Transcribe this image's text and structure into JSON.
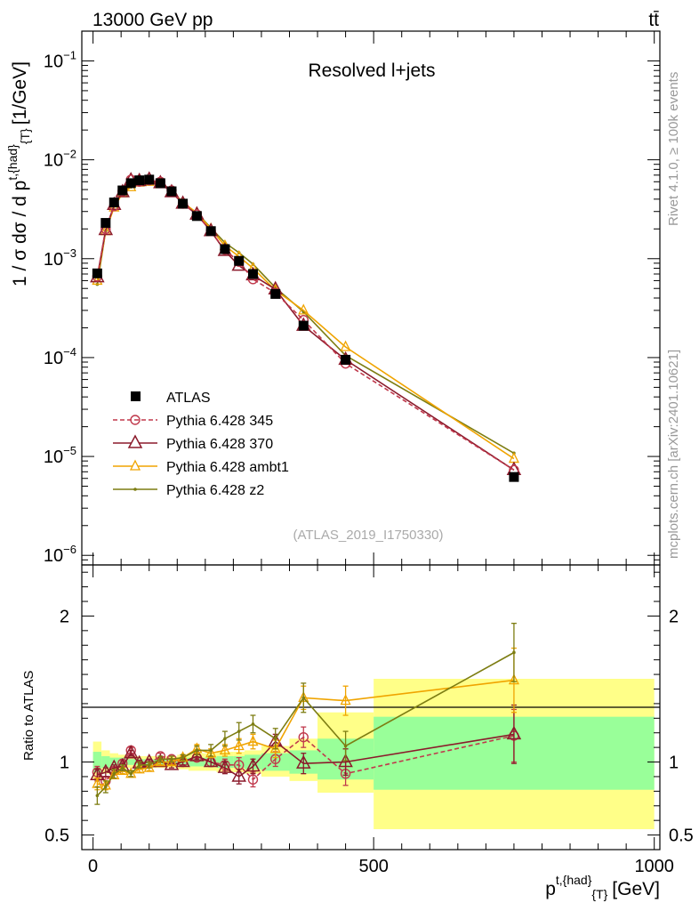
{
  "header": {
    "energy_label": "13000 GeV pp",
    "process_label": "tt̄"
  },
  "side_labels": {
    "rivet": "Rivet 4.1.0, ≥ 100k events",
    "mcplots": "mcplots.cern.ch [arXiv:2401.10621]"
  },
  "colors": {
    "atlas": "#000000",
    "p345": "#c0394c",
    "p370": "#8b1a2b",
    "ambt1": "#f0a400",
    "z2": "#7d7d12",
    "band_inner": "#99ff99",
    "band_outer": "#ffff88"
  },
  "chart_data": [
    {
      "type": "scatter",
      "scale": "log",
      "title": "Resolved l+jets",
      "analysis_id": "(ATLAS_2019_I1750330)",
      "ylabel_main": "1 / σ dσ / d p",
      "ylabel_sup": "t,{had}",
      "ylabel_sub": "{T}",
      "ylabel_unit": "[1/GeV]",
      "xlim": [
        -20,
        1010
      ],
      "ylim": [
        8e-07,
        0.2
      ],
      "ytick_labels": [
        {
          "base": "10",
          "exp": "−1",
          "value": 0.1
        },
        {
          "base": "10",
          "exp": "−2",
          "value": 0.01
        },
        {
          "base": "10",
          "exp": "−3",
          "value": 0.001
        },
        {
          "base": "10",
          "exp": "−4",
          "value": 0.0001
        },
        {
          "base": "10",
          "exp": "−5",
          "value": 1e-05
        },
        {
          "base": "10",
          "exp": "−6",
          "value": 1e-06
        }
      ],
      "x": [
        7.5,
        22.5,
        37.5,
        52.5,
        67.5,
        82.5,
        100,
        120,
        140,
        160,
        185,
        210,
        235,
        260,
        285,
        325,
        375,
        450,
        750
      ],
      "series": [
        {
          "name": "ATLAS",
          "key": "atlas",
          "values": [
            0.00071,
            0.0023,
            0.0037,
            0.0049,
            0.0058,
            0.0062,
            0.0063,
            0.0058,
            0.0048,
            0.0036,
            0.0027,
            0.0019,
            0.00125,
            0.00095,
            0.0007,
            0.00044,
            0.00021,
            9.5e-05,
            6.2e-06
          ]
        },
        {
          "name": "Pythia 6.428 345",
          "key": "p345",
          "values": [
            0.00066,
            0.002,
            0.0034,
            0.0048,
            0.0063,
            0.006,
            0.0062,
            0.006,
            0.0049,
            0.0036,
            0.0028,
            0.0019,
            0.00123,
            0.00093,
            0.00062,
            0.00045,
            0.00024,
            8.7e-05,
            7.3e-06
          ]
        },
        {
          "name": "Pythia 6.428 370",
          "key": "p370",
          "values": [
            0.00065,
            0.00195,
            0.0035,
            0.0047,
            0.0062,
            0.0061,
            0.0063,
            0.0058,
            0.0047,
            0.0036,
            0.0028,
            0.0019,
            0.0012,
            0.00085,
            0.00068,
            0.00049,
            0.00021,
            9.5e-05,
            7.3e-06
          ]
        },
        {
          "name": "Pythia 6.428 ambt1",
          "key": "ambt1",
          "values": [
            0.0006,
            0.0019,
            0.0033,
            0.0046,
            0.0053,
            0.0059,
            0.006,
            0.0058,
            0.0048,
            0.0037,
            0.0029,
            0.002,
            0.00135,
            0.00105,
            0.0008,
            0.00048,
            0.0003,
            0.000128,
            9.5e-06
          ]
        },
        {
          "name": "Pythia 6.428 z2",
          "key": "z2",
          "values": [
            0.00055,
            0.0019,
            0.0034,
            0.0047,
            0.0053,
            0.0061,
            0.0062,
            0.0059,
            0.0049,
            0.0037,
            0.0029,
            0.00205,
            0.00145,
            0.00115,
            0.00088,
            0.00051,
            0.00029,
            0.000105,
            1.08e-05
          ]
        }
      ]
    },
    {
      "type": "scatter",
      "ylabel": "Ratio to ATLAS",
      "xlabel_main": "p",
      "xlabel_sup": "t,{had}",
      "xlabel_sub": "{T}",
      "xlabel_unit": "[GeV]",
      "xlim": [
        -20,
        1010
      ],
      "ylim": [
        0.4,
        2.35
      ],
      "xtick_labels": [
        {
          "value": 0,
          "label": "0"
        },
        {
          "value": 500,
          "label": "500"
        },
        {
          "value": 1000,
          "label": "1000"
        }
      ],
      "ytick_labels": [
        {
          "value": 0.5,
          "label": "0.5"
        },
        {
          "value": 1,
          "label": "1"
        },
        {
          "value": 2,
          "label": "2"
        }
      ],
      "bins": [
        [
          0,
          15
        ],
        [
          15,
          30
        ],
        [
          30,
          45
        ],
        [
          45,
          60
        ],
        [
          60,
          75
        ],
        [
          75,
          90
        ],
        [
          90,
          110
        ],
        [
          110,
          130
        ],
        [
          130,
          150
        ],
        [
          150,
          170
        ],
        [
          170,
          200
        ],
        [
          200,
          220
        ],
        [
          220,
          250
        ],
        [
          250,
          270
        ],
        [
          270,
          300
        ],
        [
          300,
          350
        ],
        [
          350,
          400
        ],
        [
          400,
          500
        ],
        [
          500,
          1000
        ]
      ],
      "band_inner": [
        [
          0.93,
          1.07
        ],
        [
          0.96,
          1.04
        ],
        [
          0.97,
          1.03
        ],
        [
          0.97,
          1.03
        ],
        [
          0.98,
          1.02
        ],
        [
          0.98,
          1.02
        ],
        [
          0.98,
          1.02
        ],
        [
          0.98,
          1.02
        ],
        [
          0.98,
          1.02
        ],
        [
          0.97,
          1.03
        ],
        [
          0.97,
          1.03
        ],
        [
          0.97,
          1.03
        ],
        [
          0.96,
          1.04
        ],
        [
          0.96,
          1.04
        ],
        [
          0.95,
          1.05
        ],
        [
          0.94,
          1.06
        ],
        [
          0.92,
          1.08
        ],
        [
          0.88,
          1.16
        ],
        [
          0.81,
          1.31
        ]
      ],
      "band_outer": [
        [
          0.88,
          1.14
        ],
        [
          0.92,
          1.08
        ],
        [
          0.94,
          1.06
        ],
        [
          0.95,
          1.05
        ],
        [
          0.96,
          1.04
        ],
        [
          0.96,
          1.04
        ],
        [
          0.96,
          1.04
        ],
        [
          0.96,
          1.04
        ],
        [
          0.96,
          1.04
        ],
        [
          0.95,
          1.05
        ],
        [
          0.94,
          1.06
        ],
        [
          0.94,
          1.06
        ],
        [
          0.93,
          1.07
        ],
        [
          0.93,
          1.07
        ],
        [
          0.92,
          1.08
        ],
        [
          0.9,
          1.11
        ],
        [
          0.87,
          1.16
        ],
        [
          0.79,
          1.34
        ],
        [
          0.54,
          1.57
        ]
      ],
      "x": [
        7.5,
        22.5,
        37.5,
        52.5,
        67.5,
        82.5,
        100,
        120,
        140,
        160,
        185,
        210,
        235,
        260,
        285,
        325,
        375,
        450,
        750
      ],
      "series": [
        {
          "name": "Pythia 6.428 345",
          "key": "p345",
          "values": [
            0.93,
            0.87,
            0.94,
            0.99,
            1.08,
            0.98,
            0.99,
            1.04,
            1.02,
            1.0,
            1.03,
            1.0,
            0.98,
            0.98,
            0.88,
            1.02,
            1.17,
            0.92,
            1.18
          ],
          "errors": [
            0.04,
            0.03,
            0.02,
            0.02,
            0.02,
            0.02,
            0.02,
            0.02,
            0.02,
            0.02,
            0.02,
            0.03,
            0.04,
            0.05,
            0.05,
            0.05,
            0.07,
            0.08,
            0.18
          ]
        },
        {
          "name": "Pythia 6.428 370",
          "key": "p370",
          "values": [
            0.91,
            0.93,
            0.96,
            0.97,
            1.06,
            0.99,
            1.0,
            1.0,
            0.98,
            1.0,
            1.04,
            1.0,
            0.96,
            0.9,
            0.97,
            1.14,
            0.99,
            1.0,
            1.19
          ],
          "errors": [
            0.04,
            0.03,
            0.02,
            0.02,
            0.02,
            0.02,
            0.02,
            0.02,
            0.02,
            0.02,
            0.02,
            0.03,
            0.04,
            0.05,
            0.05,
            0.05,
            0.07,
            0.09,
            0.2
          ]
        },
        {
          "name": "Pythia 6.428 ambt1",
          "key": "ambt1",
          "values": [
            0.85,
            0.84,
            0.91,
            0.94,
            0.92,
            0.95,
            0.96,
            1.0,
            1.0,
            1.03,
            1.09,
            1.06,
            1.08,
            1.11,
            1.14,
            1.09,
            1.44,
            1.42,
            1.56
          ],
          "errors": [
            0.04,
            0.03,
            0.02,
            0.02,
            0.02,
            0.02,
            0.02,
            0.02,
            0.02,
            0.02,
            0.03,
            0.03,
            0.04,
            0.05,
            0.05,
            0.06,
            0.08,
            0.1,
            0.22
          ]
        },
        {
          "name": "Pythia 6.428 z2",
          "key": "z2",
          "values": [
            0.77,
            0.83,
            0.92,
            0.96,
            0.92,
            0.98,
            0.98,
            1.02,
            1.02,
            1.03,
            1.08,
            1.08,
            1.16,
            1.21,
            1.26,
            1.16,
            1.44,
            1.11,
            1.75
          ],
          "errors": [
            0.06,
            0.04,
            0.03,
            0.02,
            0.02,
            0.02,
            0.02,
            0.02,
            0.02,
            0.02,
            0.03,
            0.04,
            0.05,
            0.06,
            0.06,
            0.07,
            0.1,
            0.1,
            0.2
          ]
        }
      ]
    }
  ]
}
